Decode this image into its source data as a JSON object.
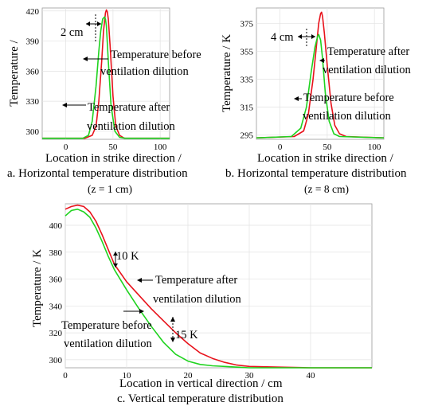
{
  "colors": {
    "series_a": "#e8121b",
    "series_b": "#1fd31f"
  },
  "chart_data": [
    {
      "type": "line",
      "caption": "a. Horizontal temperature distribution",
      "subcaption": "(z = 1 cm)",
      "xlabel": "Location in strike direction /",
      "ylabel": "Temperature /",
      "xlim": [
        -25,
        110
      ],
      "ylim": [
        292,
        423
      ],
      "xticks": [
        0,
        50,
        100
      ],
      "yticks": [
        300,
        330,
        360,
        390,
        420
      ],
      "grid": true,
      "annotations": [
        "2 cm",
        "Temperature before",
        "ventilation dilution",
        "Temperature after",
        "ventilation dilution"
      ],
      "series": [
        {
          "color_key": "series_a",
          "x": [
            -25,
            20,
            28,
            32,
            35,
            38,
            40,
            42,
            43,
            44,
            45,
            47,
            50,
            53,
            57,
            62,
            70,
            110
          ],
          "values": [
            293,
            293,
            296,
            305,
            330,
            370,
            400,
            418,
            421,
            419,
            412,
            385,
            335,
            305,
            296,
            293,
            293,
            293
          ]
        },
        {
          "color_key": "series_b",
          "x": [
            -25,
            18,
            24,
            28,
            32,
            35,
            37,
            39,
            41,
            42,
            43,
            45,
            48,
            52,
            57,
            63,
            110
          ],
          "values": [
            293,
            293,
            296,
            310,
            345,
            380,
            400,
            412,
            414,
            412,
            405,
            370,
            325,
            300,
            294,
            293,
            293
          ]
        }
      ]
    },
    {
      "type": "line",
      "caption": "b. Horizontal temperature distribution",
      "subcaption": "(z = 8 cm)",
      "xlabel": "Location in strike direction /",
      "ylabel": "Temperature / K",
      "xlim": [
        -25,
        110
      ],
      "ylim": [
        292,
        386
      ],
      "xticks": [
        0,
        50,
        100
      ],
      "yticks": [
        295,
        315,
        335,
        355,
        375
      ],
      "grid": true,
      "annotations": [
        "4 cm",
        "Temperature after",
        "ventilation dilution",
        "Temperature before",
        "ventilation dilution"
      ],
      "series": [
        {
          "color_key": "series_a",
          "x": [
            -25,
            15,
            25,
            30,
            35,
            38,
            41,
            43,
            44,
            45,
            47,
            50,
            54,
            58,
            63,
            70,
            110
          ],
          "values": [
            293,
            294,
            298,
            310,
            335,
            355,
            375,
            382,
            383,
            380,
            368,
            345,
            318,
            302,
            296,
            294,
            293
          ]
        },
        {
          "color_key": "series_b",
          "x": [
            -25,
            12,
            22,
            28,
            33,
            37,
            40,
            41,
            43,
            45,
            48,
            52,
            57,
            63,
            110
          ],
          "values": [
            293,
            294,
            300,
            315,
            340,
            358,
            366,
            367,
            363,
            350,
            325,
            305,
            296,
            294,
            293
          ]
        }
      ]
    },
    {
      "type": "line",
      "caption": "c. Vertical temperature distribution",
      "xlabel": "Location in vertical direction / cm",
      "ylabel": "Temperature / K",
      "xlim": [
        0,
        50
      ],
      "ylim": [
        294,
        416
      ],
      "xticks": [
        0,
        10,
        20,
        30,
        40
      ],
      "yticks": [
        300,
        320,
        340,
        360,
        380,
        400
      ],
      "grid": true,
      "annotations": [
        "10 K",
        "Temperature after",
        "ventilation dilution",
        "Temperature before",
        "ventilation dilution",
        "15 K"
      ],
      "series": [
        {
          "color_key": "series_a",
          "x": [
            0,
            1,
            2,
            3,
            4,
            5,
            6,
            7,
            8,
            10,
            12,
            14,
            16,
            18,
            20,
            22,
            24,
            26,
            28,
            30,
            35,
            40,
            50
          ],
          "values": [
            412,
            414,
            415,
            414,
            410,
            403,
            393,
            382,
            371,
            358,
            348,
            338,
            329,
            320,
            312,
            305,
            301,
            298,
            296,
            295,
            294.5,
            294,
            294
          ]
        },
        {
          "color_key": "series_b",
          "x": [
            0,
            1,
            2,
            3,
            4,
            5,
            6,
            7,
            8,
            10,
            12,
            14,
            16,
            18,
            20,
            22,
            24,
            26,
            28,
            30,
            35,
            40,
            50
          ],
          "values": [
            407,
            411,
            412,
            410,
            406,
            398,
            388,
            377,
            367,
            352,
            338,
            325,
            313,
            304,
            299,
            296.5,
            295.5,
            295,
            294.5,
            294,
            294,
            294,
            294
          ]
        }
      ]
    }
  ]
}
